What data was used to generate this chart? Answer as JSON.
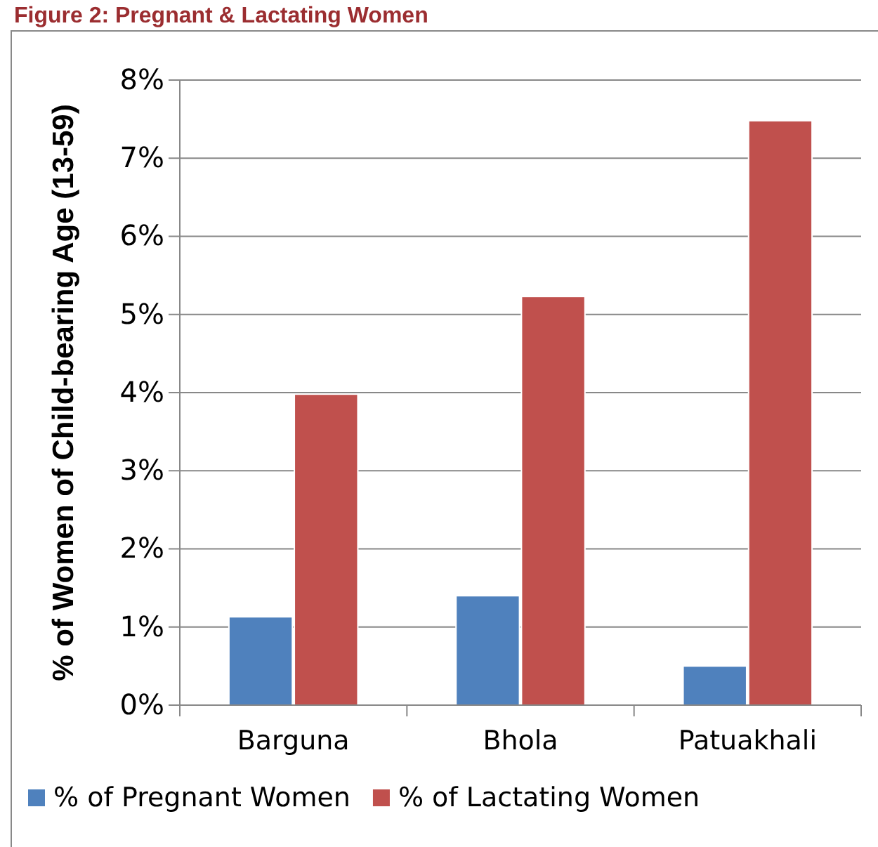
{
  "chart_data": {
    "type": "bar",
    "title": "Figure 2: Pregnant & Lactating Women",
    "ylabel": "% of Women of Child-bearing Age (13-59)",
    "categories": [
      "Barguna",
      "Bhola",
      "Patuakhali"
    ],
    "series": [
      {
        "name": "% of Pregnant Women",
        "color": "#4f81bd",
        "values": [
          1.13,
          1.4,
          0.5
        ]
      },
      {
        "name": "% of Lactating Women",
        "color": "#c0504d",
        "values": [
          3.98,
          5.23,
          7.48
        ]
      }
    ],
    "ylim": [
      0,
      8
    ],
    "yticks": [
      {
        "value": 0,
        "label": "0%"
      },
      {
        "value": 1,
        "label": "1%"
      },
      {
        "value": 2,
        "label": "2%"
      },
      {
        "value": 3,
        "label": "3%"
      },
      {
        "value": 4,
        "label": "4%"
      },
      {
        "value": 5,
        "label": "5%"
      },
      {
        "value": 6,
        "label": "6%"
      },
      {
        "value": 7,
        "label": "7%"
      },
      {
        "value": 8,
        "label": "8%"
      }
    ],
    "grid": "y",
    "legend": "bottom"
  }
}
